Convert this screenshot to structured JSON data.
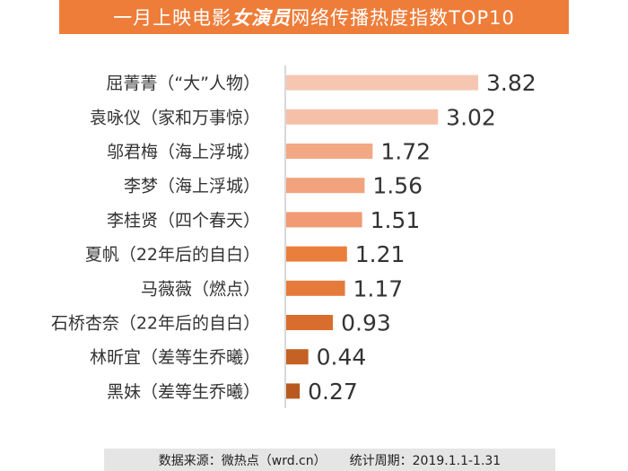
{
  "title": {
    "pre": "一月上映电影",
    "highlight": "女演员",
    "post": "网络传播热度指数TOP10"
  },
  "footer": {
    "source": "数据来源：微热点（wrd.cn）",
    "period": "统计周期：2019.1.1-1.31"
  },
  "chart_data": {
    "type": "bar",
    "orientation": "horizontal",
    "title": "一月上映电影女演员网络传播热度指数TOP10",
    "categories": [
      "屈菁菁（“大”人物）",
      "袁咏仪（家和万事惊）",
      "邬君梅（海上浮城）",
      "李梦（海上浮城）",
      "李桂贤（四个春天）",
      "夏帆（22年后的自白）",
      "马薇薇（燃点）",
      "石桥杏奈（22年后的自白）",
      "林昕宜（差等生乔曦）",
      "黑妹（差等生乔曦）"
    ],
    "values": [
      3.82,
      3.02,
      1.72,
      1.56,
      1.51,
      1.21,
      1.17,
      0.93,
      0.44,
      0.27
    ],
    "value_labels": [
      "3.82",
      "3.02",
      "1.72",
      "1.56",
      "1.51",
      "1.21",
      "1.17",
      "0.93",
      "0.44",
      "0.27"
    ],
    "bar_colors": [
      "#f6c6b1",
      "#f6c0a8",
      "#f3a885",
      "#f2a27c",
      "#f19a73",
      "#ea7f3c",
      "#e57b3b",
      "#d86d2d",
      "#c56124",
      "#b85a20"
    ],
    "axis_color": "#bdbdbd",
    "grid": false,
    "legend": "none"
  }
}
